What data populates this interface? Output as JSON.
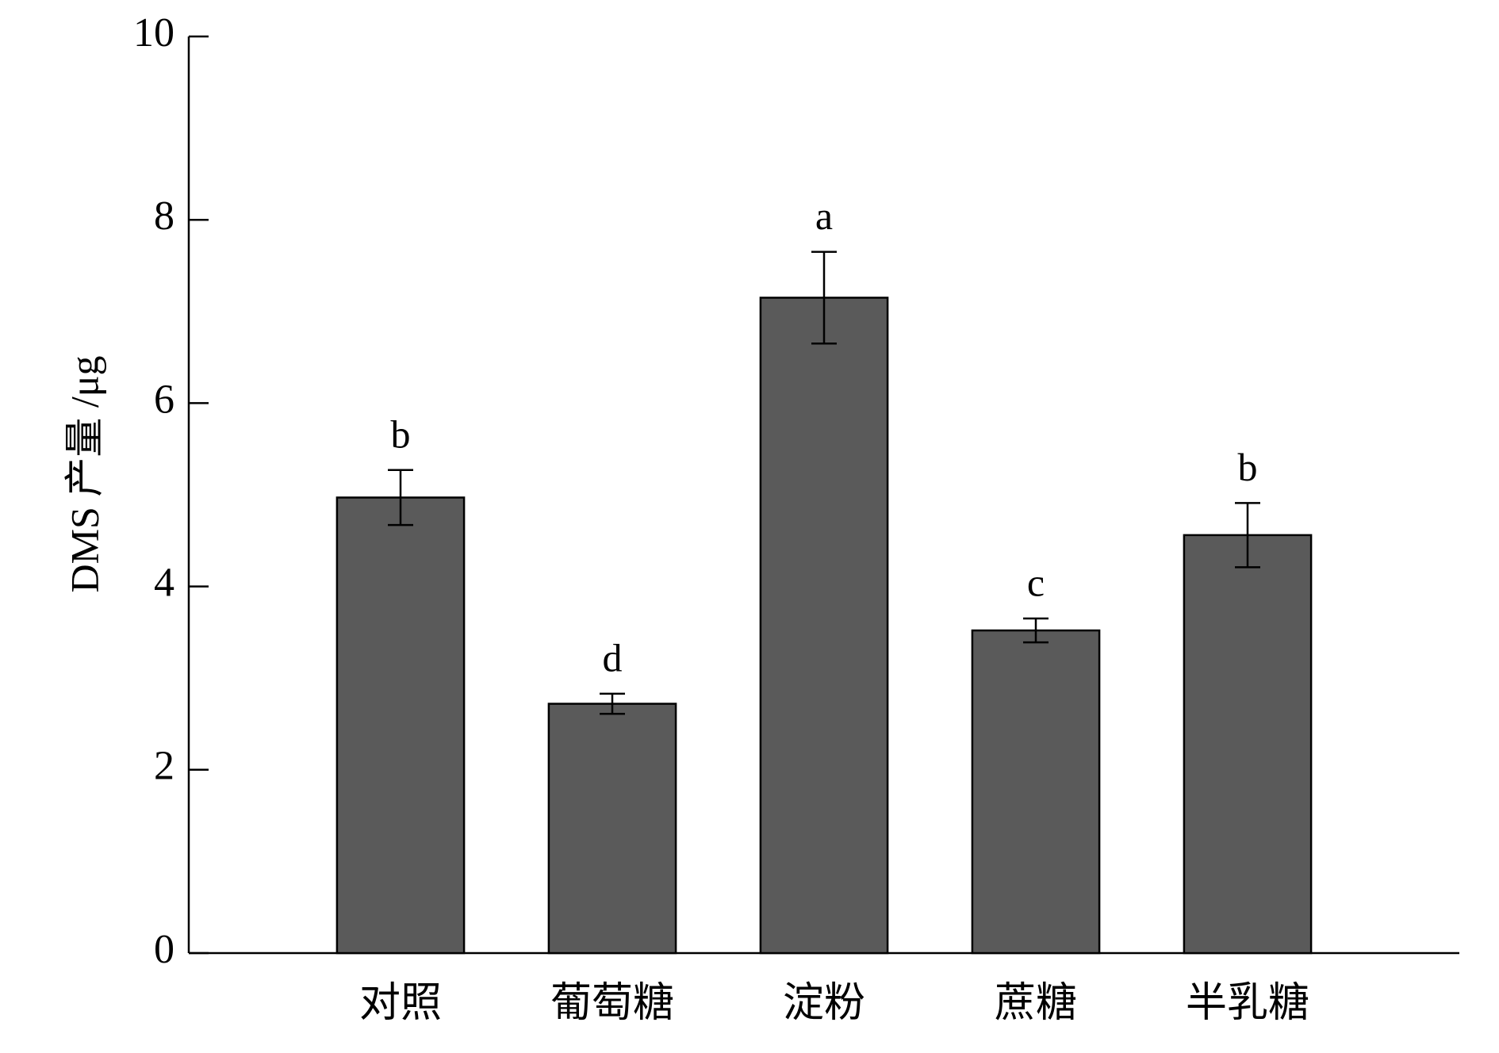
{
  "chart_data": {
    "type": "bar",
    "ylabel": "DMS 产量 /μg",
    "categories": [
      "对照",
      "葡萄糖",
      "淀粉",
      "蔗糖",
      "半乳糖"
    ],
    "values": [
      4.97,
      2.72,
      7.15,
      3.52,
      4.56
    ],
    "errors": [
      0.3,
      0.11,
      0.5,
      0.13,
      0.35
    ],
    "annotations": [
      "b",
      "d",
      "a",
      "c",
      "b"
    ],
    "color": "#5a5a5a",
    "ylim": [
      0,
      10
    ],
    "yticks": [
      0,
      2,
      4,
      6,
      8,
      10
    ]
  }
}
